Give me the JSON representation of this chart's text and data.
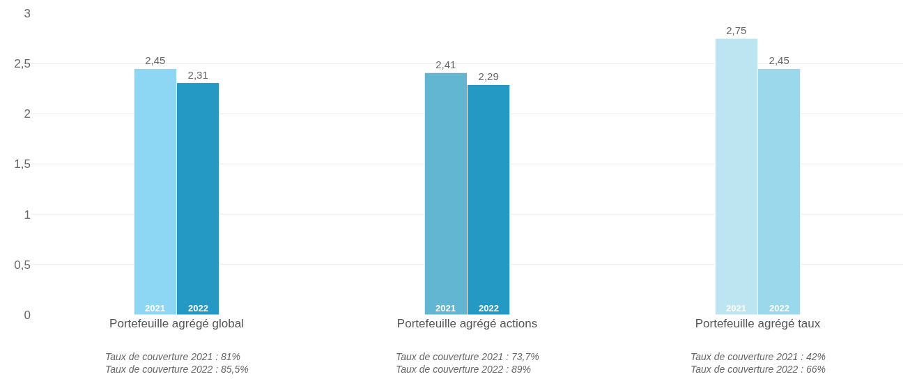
{
  "chart_data": {
    "type": "bar",
    "categories": [
      "Portefeuille agrégé global",
      "Portefeuille agrégé actions",
      "Portefeuille agrégé taux"
    ],
    "series": [
      {
        "name": "2021",
        "colors": [
          "#8dd7f5",
          "#62b6d2",
          "#bde5f1"
        ],
        "values": [
          2.45,
          2.41,
          2.75
        ],
        "value_labels": [
          "2,45",
          "2,41",
          "2,75"
        ]
      },
      {
        "name": "2022",
        "colors": [
          "#2399c3",
          "#2399c3",
          "#9bd8ec"
        ],
        "values": [
          2.31,
          2.29,
          2.45
        ],
        "value_labels": [
          "2,31",
          "2,29",
          "2,45"
        ]
      }
    ],
    "ylim": [
      0,
      3
    ],
    "yticks": [
      0,
      {
        "value": 0.5,
        "label": "0,5"
      },
      1,
      {
        "value": 1.5,
        "label": "1,5"
      },
      2,
      {
        "value": 2.5,
        "label": "2,5"
      },
      3
    ],
    "grid": "y",
    "legend": false,
    "annotations": [
      "Taux de couverture 2021 : 81%\nTaux de couverture 2022 : 85,5%",
      "Taux de couverture 2021 : 73,7%\nTaux de couverture 2022 : 89%",
      "Taux de couverture 2021 : 42%\nTaux de couverture 2022 : 66%"
    ]
  }
}
